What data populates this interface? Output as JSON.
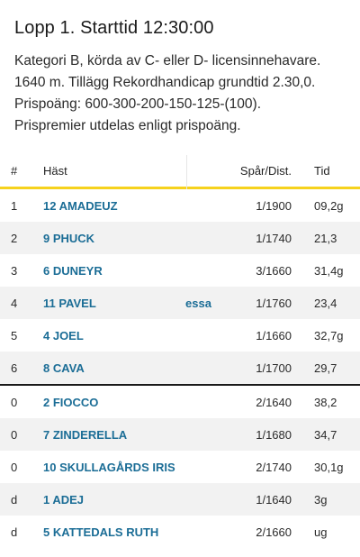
{
  "race": {
    "title": "Lopp 1. Starttid 12:30:00",
    "lines": [
      "Kategori B, körda av C- eller D- licensinnehavare.",
      "1640 m. Tillägg Rekordhandicap grundtid 2.30,0.",
      "Prispoäng: 600-300-200-150-125-(100).",
      "Prispremier utdelas enligt prispoäng."
    ]
  },
  "table": {
    "headers": {
      "num": "#",
      "horse": "Häst",
      "dist": "Spår/Dist.",
      "time": "Tid"
    },
    "rows": [
      {
        "num": "1",
        "horse": "12 AMADEUZ",
        "trail": "",
        "dist": "1/1900",
        "time": "09,2g"
      },
      {
        "num": "2",
        "horse": "9 PHUCK",
        "trail": "",
        "dist": "1/1740",
        "time": "21,3"
      },
      {
        "num": "3",
        "horse": "6 DUNEYR",
        "trail": "",
        "dist": "3/1660",
        "time": "31,4g"
      },
      {
        "num": "4",
        "horse": "11 PAVEL",
        "trail": "essa",
        "dist": "1/1760",
        "time": "23,4"
      },
      {
        "num": "5",
        "horse": "4 JOEL",
        "trail": "",
        "dist": "1/1660",
        "time": "32,7g"
      },
      {
        "num": "6",
        "horse": "8 CAVA",
        "trail": "",
        "dist": "1/1700",
        "time": "29,7"
      }
    ],
    "rows_after": [
      {
        "num": "0",
        "horse": "2 FIOCCO",
        "trail": "",
        "dist": "2/1640",
        "time": "38,2"
      },
      {
        "num": "0",
        "horse": "7 ZINDERELLA",
        "trail": "",
        "dist": "1/1680",
        "time": "34,7"
      },
      {
        "num": "0",
        "horse": "10 SKULLAGÅRDS IRIS",
        "trail": "",
        "dist": "2/1740",
        "time": "30,1g"
      },
      {
        "num": "d",
        "horse": "1 ADEJ",
        "trail": "",
        "dist": "1/1640",
        "time": "3g"
      },
      {
        "num": "d",
        "horse": "5 KATTEDALS RUTH",
        "trail": "",
        "dist": "2/1660",
        "time": "ug"
      }
    ]
  },
  "colors": {
    "accent": "#f6d21d",
    "link": "#1b6d96",
    "alt_row": "#f2f2f2"
  }
}
